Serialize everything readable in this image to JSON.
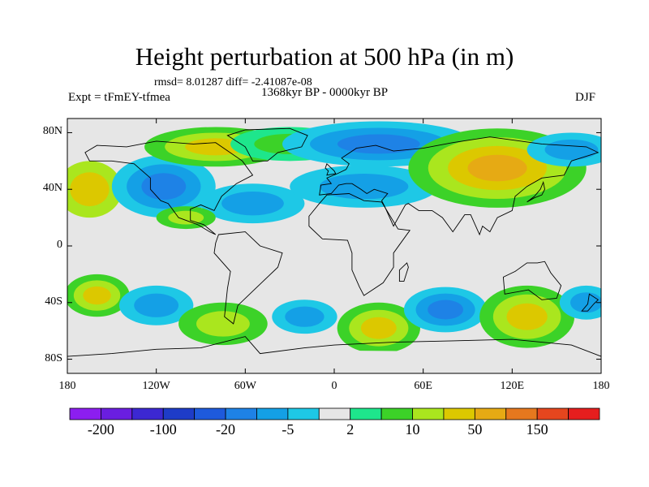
{
  "title": "Height perturbation at 500 hPa (in m)",
  "stats": "rmsd= 8.01287 diff= -2.41087e-08",
  "period": "1368kyr BP - 0000kyr BP",
  "experiment": "Expt = tFmEY-tfmea",
  "season": "DJF",
  "map": {
    "lat_ticks": [
      {
        "value": 80,
        "label": "80N"
      },
      {
        "value": 40,
        "label": "40N"
      },
      {
        "value": 0,
        "label": "0"
      },
      {
        "value": -40,
        "label": "40S"
      },
      {
        "value": -80,
        "label": "80S"
      }
    ],
    "lon_ticks": [
      {
        "value": -180,
        "label": "180"
      },
      {
        "value": -120,
        "label": "120W"
      },
      {
        "value": -60,
        "label": "60W"
      },
      {
        "value": 0,
        "label": "0"
      },
      {
        "value": 60,
        "label": "60E"
      },
      {
        "value": 120,
        "label": "120E"
      },
      {
        "value": 180,
        "label": "180"
      }
    ]
  },
  "colorbar": {
    "colors": [
      "#8c1ef0",
      "#6a1ee0",
      "#3c28d2",
      "#1e3cc8",
      "#1e5adc",
      "#1e82e6",
      "#14a0e6",
      "#1ec8e6",
      "#e6e6e6",
      "#1ee68c",
      "#3cd228",
      "#aae61e",
      "#dcc800",
      "#e6aa14",
      "#e6781e",
      "#e6461e",
      "#e61e1e"
    ],
    "labels": [
      {
        "edge": 1,
        "text": "-200"
      },
      {
        "edge": 3,
        "text": "-100"
      },
      {
        "edge": 5,
        "text": "-20"
      },
      {
        "edge": 7,
        "text": "-5"
      },
      {
        "edge": 9,
        "text": "2"
      },
      {
        "edge": 11,
        "text": "10"
      },
      {
        "edge": 13,
        "text": "50"
      },
      {
        "edge": 15,
        "text": "150"
      }
    ]
  },
  "field_blobs": [
    {
      "lon": -165,
      "lat": 40,
      "rx": 22,
      "ry": 20,
      "levels": [
        11,
        12
      ]
    },
    {
      "lon": -115,
      "lat": 42,
      "rx": 35,
      "ry": 22,
      "levels": [
        7,
        6,
        5
      ]
    },
    {
      "lon": -80,
      "lat": 70,
      "rx": 48,
      "ry": 14,
      "levels": [
        10,
        11,
        12
      ]
    },
    {
      "lon": -30,
      "lat": 72,
      "rx": 40,
      "ry": 12,
      "levels": [
        9,
        10
      ]
    },
    {
      "lon": -55,
      "lat": 30,
      "rx": 35,
      "ry": 14,
      "levels": [
        7,
        6
      ]
    },
    {
      "lon": 30,
      "lat": 72,
      "rx": 65,
      "ry": 16,
      "levels": [
        7,
        6,
        5
      ]
    },
    {
      "lon": 20,
      "lat": 42,
      "rx": 50,
      "ry": 15,
      "levels": [
        7,
        6
      ]
    },
    {
      "lon": 110,
      "lat": 55,
      "rx": 60,
      "ry": 28,
      "levels": [
        10,
        11,
        12,
        13
      ]
    },
    {
      "lon": 160,
      "lat": 68,
      "rx": 30,
      "ry": 12,
      "levels": [
        7,
        6
      ]
    },
    {
      "lon": -100,
      "lat": 20,
      "rx": 20,
      "ry": 8,
      "levels": [
        10,
        11
      ]
    },
    {
      "lon": -160,
      "lat": -35,
      "rx": 22,
      "ry": 15,
      "levels": [
        10,
        11,
        12
      ]
    },
    {
      "lon": -120,
      "lat": -42,
      "rx": 25,
      "ry": 14,
      "levels": [
        7,
        6
      ]
    },
    {
      "lon": -75,
      "lat": -55,
      "rx": 30,
      "ry": 15,
      "levels": [
        10,
        11
      ]
    },
    {
      "lon": -20,
      "lat": -50,
      "rx": 22,
      "ry": 12,
      "levels": [
        7,
        6
      ]
    },
    {
      "lon": 30,
      "lat": -58,
      "rx": 28,
      "ry": 18,
      "levels": [
        10,
        11,
        12
      ]
    },
    {
      "lon": 75,
      "lat": -45,
      "rx": 28,
      "ry": 16,
      "levels": [
        7,
        6,
        5
      ]
    },
    {
      "lon": 130,
      "lat": -50,
      "rx": 32,
      "ry": 22,
      "levels": [
        10,
        11,
        12
      ]
    },
    {
      "lon": 170,
      "lat": -40,
      "rx": 18,
      "ry": 12,
      "levels": [
        7,
        6
      ]
    },
    {
      "lon": 0,
      "lat": -82,
      "rx": 180,
      "ry": 8,
      "levels": [
        8
      ]
    }
  ]
}
